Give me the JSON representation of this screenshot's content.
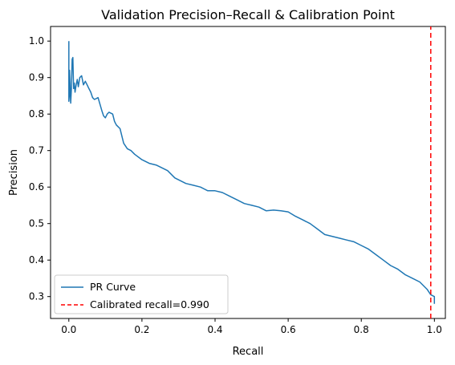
{
  "chart_data": {
    "type": "line",
    "title": "Validation Precision–Recall & Calibration Point",
    "xlabel": "Recall",
    "ylabel": "Precision",
    "xlim": [
      -0.05,
      1.03
    ],
    "ylim": [
      0.24,
      1.04
    ],
    "xticks": [
      0.0,
      0.2,
      0.4,
      0.6,
      0.8,
      1.0
    ],
    "xtick_labels": [
      "0.0",
      "0.2",
      "0.4",
      "0.6",
      "0.8",
      "1.0"
    ],
    "yticks": [
      0.3,
      0.4,
      0.5,
      0.6,
      0.7,
      0.8,
      0.9,
      1.0
    ],
    "ytick_labels": [
      "0.3",
      "0.4",
      "0.5",
      "0.6",
      "0.7",
      "0.8",
      "0.9",
      "1.0"
    ],
    "grid": false,
    "legend_position": "lower-left",
    "series": [
      {
        "name": "PR Curve",
        "color": "#1f77b4",
        "style": "solid",
        "x": [
          0.0,
          0.0,
          0.002,
          0.002,
          0.005,
          0.007,
          0.009,
          0.011,
          0.013,
          0.015,
          0.017,
          0.02,
          0.023,
          0.026,
          0.03,
          0.035,
          0.04,
          0.045,
          0.05,
          0.055,
          0.06,
          0.065,
          0.07,
          0.08,
          0.09,
          0.095,
          0.1,
          0.105,
          0.11,
          0.12,
          0.125,
          0.13,
          0.14,
          0.15,
          0.16,
          0.17,
          0.18,
          0.2,
          0.22,
          0.24,
          0.25,
          0.27,
          0.29,
          0.3,
          0.32,
          0.34,
          0.36,
          0.38,
          0.4,
          0.42,
          0.44,
          0.46,
          0.48,
          0.5,
          0.52,
          0.54,
          0.56,
          0.58,
          0.6,
          0.62,
          0.64,
          0.66,
          0.68,
          0.7,
          0.72,
          0.74,
          0.76,
          0.78,
          0.8,
          0.82,
          0.84,
          0.86,
          0.88,
          0.9,
          0.92,
          0.94,
          0.96,
          0.98,
          0.99,
          1.0,
          1.0
        ],
        "y": [
          1.0,
          0.835,
          0.86,
          0.92,
          0.83,
          0.87,
          0.95,
          0.955,
          0.87,
          0.885,
          0.86,
          0.88,
          0.895,
          0.875,
          0.9,
          0.905,
          0.88,
          0.89,
          0.88,
          0.87,
          0.86,
          0.845,
          0.84,
          0.845,
          0.81,
          0.795,
          0.79,
          0.8,
          0.805,
          0.8,
          0.78,
          0.77,
          0.76,
          0.72,
          0.705,
          0.7,
          0.69,
          0.675,
          0.665,
          0.66,
          0.655,
          0.645,
          0.625,
          0.62,
          0.61,
          0.605,
          0.6,
          0.59,
          0.59,
          0.585,
          0.575,
          0.565,
          0.555,
          0.55,
          0.545,
          0.535,
          0.537,
          0.535,
          0.532,
          0.52,
          0.51,
          0.5,
          0.485,
          0.47,
          0.465,
          0.46,
          0.455,
          0.45,
          0.44,
          0.43,
          0.415,
          0.4,
          0.385,
          0.375,
          0.36,
          0.35,
          0.34,
          0.32,
          0.305,
          0.3,
          0.28
        ]
      },
      {
        "name": "Calibrated recall=0.990",
        "color": "#ff0000",
        "style": "dashed",
        "x": [
          0.99,
          0.99
        ],
        "y": [
          0.24,
          1.04
        ]
      }
    ]
  }
}
